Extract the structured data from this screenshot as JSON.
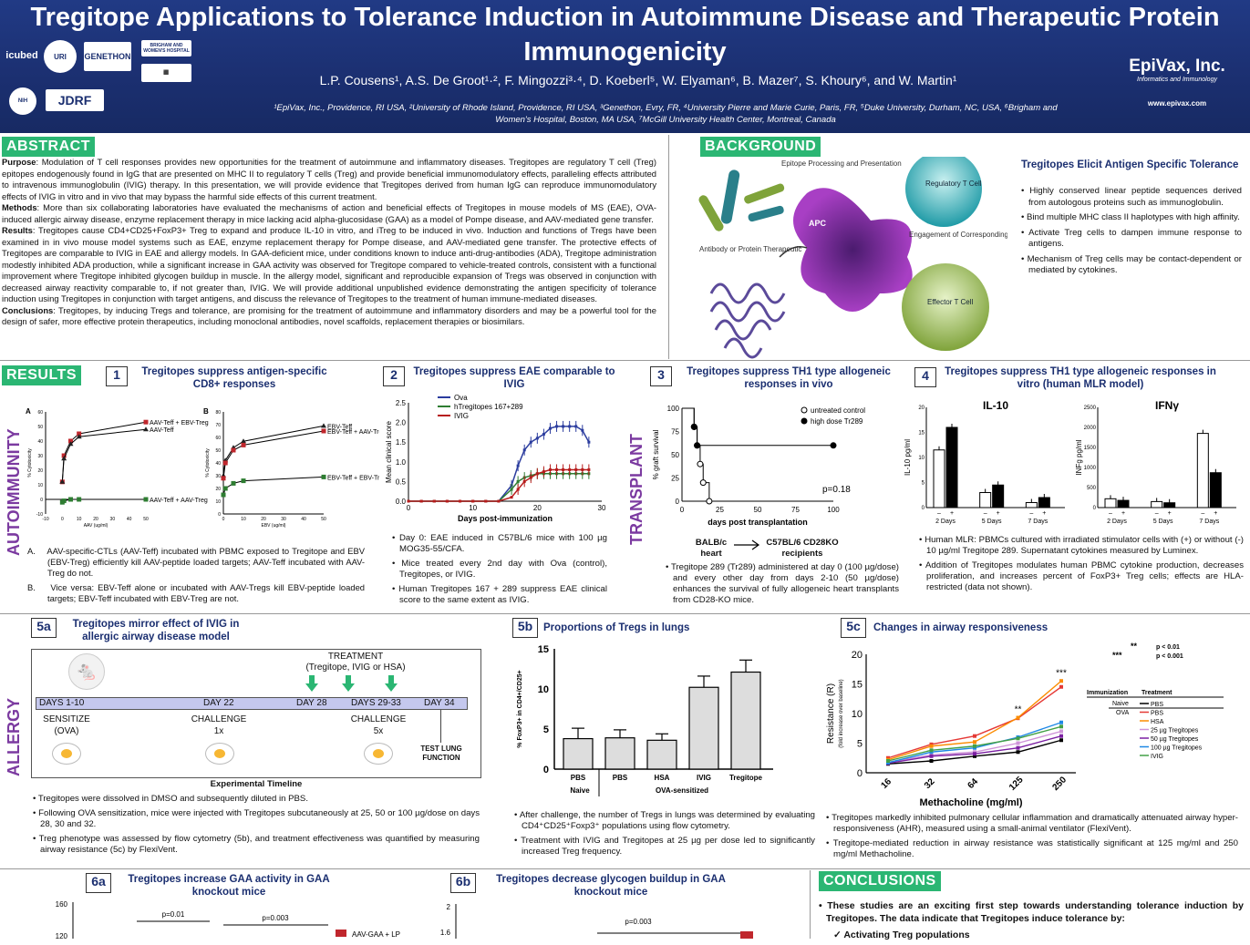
{
  "header": {
    "title": "Tregitope Applications to Tolerance Induction in Autoimmune Disease and Therapeutic Protein Immunogenicity",
    "authors": "L.P. Cousens¹, A.S. De Groot¹·², F. Mingozzi³·⁴, D. Koeberl⁵, W. Elyaman⁶, B. Mazer⁷, S. Khoury⁶, and W. Martin¹",
    "affiliations": "¹EpiVax, Inc., Providence, RI USA, ²University of Rhode Island, Providence, RI USA, ³Genethon, Evry, FR, ⁴University Pierre and Marie Curie, Paris, FR, ⁵Duke University, Durham, NC, USA, ⁶Brigham and Women's Hospital, Boston, MA USA, ⁷McGill University Health Center, Montreal, Canada",
    "logos": {
      "icubed": "icubed",
      "genethon": "GENETHON",
      "jdrf": "JDRF",
      "brigham": "BRIGHAM AND WOMEN'S HOSPITAL"
    },
    "epivax_name": "EpiVax, Inc.",
    "epivax_tagline": "Informatics and Immunology",
    "epivax_url": "www.epivax.com"
  },
  "abstract": {
    "heading": "ABSTRACT",
    "purpose_label": "Purpose",
    "purpose": ": Modulation of T cell responses provides new opportunities for the treatment of autoimmune and inflammatory diseases. Tregitopes are regulatory T cell (Treg) epitopes endogenously found in IgG that are presented on MHC II to regulatory T cells (Treg) and provide beneficial immunomodulatory effects, paralleling effects attributed to intravenous immunoglobulin (IVIG) therapy. In this presentation, we will provide evidence that Tregitopes derived from human IgG can reproduce immunomodulatory effects of IVIG in vitro and in vivo that may bypass the harmful side effects of this current treatment.",
    "methods_label": "Methods",
    "methods": ": More than six collaborating laboratories have evaluated the mechanisms of action and beneficial effects of Tregitopes in mouse models of MS (EAE), OVA-induced allergic airway disease, enzyme replacement therapy in mice lacking acid alpha-glucosidase (GAA) as a model of Pompe disease, and AAV-mediated gene transfer.",
    "results_label": "Results",
    "results": ": Tregitopes cause CD4+CD25+FoxP3+ Treg to expand and produce IL-10 in vitro, and iTreg to be induced in vivo. Induction and functions of Tregs have been examined in in vivo mouse model systems such as EAE, enzyme replacement therapy for Pompe disease, and AAV-mediated gene transfer. The protective effects of Tregitopes are comparable to IVIG in EAE and allergy models. In GAA-deficient mice, under conditions known to induce anti-drug-antibodies (ADA), Tregitope administration modestly inhibited ADA production, while a significant increase in GAA activity was observed for Tregitope compared to vehicle-treated controls, consistent with a functional improvement where Tregitope inhibited glycogen buildup in muscle. In the allergy model, significant and reproducible expansion of Tregs was observed in conjunction with decreased airway reactivity comparable to, if not greater than, IVIG. We will provide additional unpublished evidence demonstrating the antigen specificity of tolerance induction using Tregitopes in conjunction with target antigens, and discuss the relevance of Tregitopes to the treatment of human immune-mediated diseases.",
    "conclusions_label": "Conclusions",
    "conclusions": ": Tregitopes, by inducing Tregs and tolerance, are promising for the treatment of autoimmune and inflammatory disorders and may be a powerful tool for the design of safer, more effective protein therapeutics, including monoclonal antibodies, novel scaffolds, replacement therapies or biosimilars."
  },
  "background": {
    "heading": "BACKGROUND",
    "subtitle": "Tregitopes Elicit Antigen Specific Tolerance",
    "labels": {
      "epitope": "Epitope Processing and Presentation",
      "apc": "APC",
      "antibody": "Antibody or Protein Therapeutic",
      "treg": "Regulatory T Cell",
      "engage": "Engagement of Corresponding T Cells",
      "effector": "Effector T Cell"
    },
    "bullets": [
      "Highly conserved linear peptide sequences derived from autologous proteins such as immunoglobulin.",
      "Bind multiple MHC class II haplotypes with high affinity.",
      "Activate Treg cells to dampen immune response to antigens.",
      "Mechanism of Treg cells may be contact-dependent or mediated by cytokines."
    ]
  },
  "results": {
    "heading": "RESULTS",
    "side_autoimmunity": "AUTOIMMUNITY",
    "side_transplant": "TRANSPLANT",
    "side_allergy": "ALLERGY",
    "p1": {
      "num": "1",
      "title": "Tregitopes suppress antigen-specific CD8+ responses",
      "panelA": "A",
      "panelB": "B",
      "ylabel": "% Cytotoxicity",
      "xlabelA": "AAV (ug/ml)",
      "xlabelB": "EBV (ug/ml)",
      "bullets": [
        "AAV-specific-CTLs (AAV-Teff) incubated with PBMC exposed to Tregitope and EBV (EBV-Treg) efficiently kill AAV-peptide loaded targets; AAV-Teff incubated with AAV-Treg do not.",
        "Vice versa: EBV-Teff alone or incubated with AAV-Tregs kill EBV-peptide loaded targets; EBV-Teff incubated with EBV-Treg are not."
      ],
      "bullet_letters": [
        "A.",
        "B."
      ]
    },
    "p2": {
      "num": "2",
      "title": "Tregitopes suppress EAE comparable to IVIG",
      "ylabel": "Mean clinical score",
      "xlabel": "Days post-immunization",
      "bullets": [
        "Day 0: EAE induced in C57BL/6 mice with 100 µg MOG35-55/CFA.",
        "Mice treated every 2nd day with Ova (control), Tregitopes, or IVIG.",
        "Human Tregitopes 167 + 289 suppress EAE clinical score to the same extent as IVIG."
      ]
    },
    "p3": {
      "num": "3",
      "title": "Tregitopes suppress TH1 type allogeneic responses in vivo",
      "ylabel": "% graft survival",
      "xlabel": "days post transplantation",
      "pval": "p=0.18",
      "donor": "BALB/c heart",
      "recipient": "C57BL/6 CD28KO recipients",
      "bullets": [
        "Tregitope 289 (Tr289) administered at day 0 (100 µg/dose) and every other day from days 2-10 (50 µg/dose) enhances the survival of fully allogeneic heart transplants from CD28-KO mice."
      ]
    },
    "p4": {
      "num": "4",
      "title": "Tregitopes suppress TH1 type allogeneic responses in vitro (human MLR model)",
      "il10_title": "IL-10",
      "ifng_title": "IFNγ",
      "il10_ylabel": "IL-10 pg/ml",
      "ifng_ylabel": "INFg pg/ml",
      "bullets": [
        "Human MLR: PBMCs cultured with irradiated stimulator cells with (+) or without (-) 10 µg/ml Tregitope 289. Supernatant cytokines measured by Luminex.",
        "Addition of Tregitopes modulates human PBMC cytokine production, decreases proliferation, and increases percent of FoxP3+ Treg cells; effects are HLA-restricted (data not shown)."
      ]
    },
    "p5a": {
      "num": "5a",
      "title": "Tregitopes mirror effect of IVIG in allergic airway disease model",
      "treatment": "TREATMENT",
      "treatment_sub": "(Tregitope, IVIG or HSA)",
      "days": [
        "DAYS 1-10",
        "DAY 22",
        "DAY 28",
        "DAYS 29-33",
        "DAY 34"
      ],
      "sens": "SENSITIZE",
      "sens_sub": "(OVA)",
      "chal1": "CHALLENGE",
      "chal1_sub": "1x",
      "chal2": "CHALLENGE",
      "chal2_sub": "5x",
      "test": "TEST LUNG FUNCTION",
      "timeline_label": "Experimental Timeline",
      "bullets": [
        "Tregitopes were dissolved in DMSO and subsequently diluted in PBS.",
        "Following OVA sensitization, mice were injected with Tregitopes subcutaneously at 25, 50 or 100 µg/dose on days 28, 30 and 32.",
        "Treg phenotype was assessed by flow cytometry (5b), and treatment effectiveness was quantified by measuring airway resistance (5c) by FlexiVent."
      ]
    },
    "p5b": {
      "num": "5b",
      "title": "Proportions of Tregs in lungs",
      "ylabel": "% FoxP3+ in CD4+/CD25+",
      "naive": "Naive",
      "ova": "OVA-sensitized",
      "bullets": [
        "After challenge, the number of Tregs in lungs was determined by evaluating CD4⁺CD25⁺Foxp3⁺ populations using flow cytometry.",
        "Treatment with IVIG and Tregitopes at 25 µg per dose led to significantly increased Treg frequency."
      ]
    },
    "p5c": {
      "num": "5c",
      "title": "Changes in airway responsiveness",
      "ylabel": "Resistance (R)",
      "ylabel2": "(fold increase over baseline)",
      "xlabel": "Methacholine (mg/ml)",
      "sig": [
        "**",
        "***"
      ],
      "sigvals": [
        "p < 0.01",
        "p < 0.001"
      ],
      "legend_immunization": "Immunization",
      "legend_treatment": "Treatment",
      "legend_naive": "Naive",
      "legend_ova": "OVA",
      "bullets": [
        "Tregitopes markedly inhibited pulmonary cellular inflammation and dramatically attenuated airway hyper-responsiveness (AHR), measured using a small-animal ventilator (FlexiVent).",
        "Tregitope-mediated reduction in airway resistance was statistically significant at 125 mg/ml and 250 mg/ml Methacholine."
      ]
    },
    "p6a": {
      "num": "6a",
      "title": "Tregitopes increase GAA activity in GAA knockout mice",
      "p1": "p=0.01",
      "p2": "p=0.003",
      "legend": "AAV-GAA + LP",
      "yticks": [
        "160",
        "120"
      ]
    },
    "p6b": {
      "num": "6b",
      "title": "Tregitopes decrease glycogen buildup in GAA knockout mice",
      "p": "p=0.003",
      "yticks": [
        "2",
        "1.6"
      ]
    }
  },
  "conclusions": {
    "heading": "CONCLUSIONS",
    "text": "These studies are an exciting first step towards understanding tolerance induction by Tregitopes. The data indicate that Tregitopes induce tolerance by:",
    "sub": "Activating Treg populations"
  },
  "chart_data": [
    {
      "type": "line",
      "id": "fig1A",
      "x": [
        0,
        1,
        5,
        10,
        50
      ],
      "ylim": [
        -10,
        60
      ],
      "xticks": [
        "-10",
        "0",
        "10",
        "20",
        "30",
        "40",
        "50"
      ],
      "yticks": [
        "60",
        "50",
        "40",
        "30",
        "20",
        "10",
        "0",
        "-10"
      ],
      "series": [
        {
          "name": "AAV-Teff + EBV-Treg",
          "values": [
            12,
            30,
            40,
            45,
            53
          ],
          "color": "#c0272d",
          "marker": "square"
        },
        {
          "name": "AAV-Teff",
          "values": [
            12,
            28,
            38,
            43,
            48
          ],
          "color": "#222",
          "marker": "triangle"
        },
        {
          "name": "AAV-Teff + AAV-Treg",
          "values": [
            -2,
            -1,
            0,
            0,
            0
          ],
          "color": "#2e7d32",
          "marker": "square"
        }
      ]
    },
    {
      "type": "line",
      "id": "fig1B",
      "x": [
        0,
        1,
        5,
        10,
        50
      ],
      "ylim": [
        0,
        80
      ],
      "xticks": [
        "0",
        "10",
        "20",
        "30",
        "40",
        "50"
      ],
      "yticks": [
        "80",
        "70",
        "60",
        "50",
        "40",
        "30",
        "20",
        "10",
        "0"
      ],
      "series": [
        {
          "name": "EBV-Teff",
          "values": [
            30,
            42,
            52,
            57,
            69
          ],
          "color": "#222",
          "marker": "triangle"
        },
        {
          "name": "EBV-Teff + AAV-Treg",
          "values": [
            28,
            40,
            50,
            54,
            65
          ],
          "color": "#c0272d",
          "marker": "square"
        },
        {
          "name": "EBV-Teff + EBV-Treg",
          "values": [
            15,
            20,
            24,
            26,
            29
          ],
          "color": "#2e7d32",
          "marker": "square"
        }
      ]
    },
    {
      "type": "line",
      "id": "fig2",
      "x": [
        0,
        2,
        4,
        6,
        8,
        10,
        12,
        14,
        16,
        17,
        18,
        19,
        20,
        21,
        22,
        23,
        24,
        25,
        26,
        27,
        28
      ],
      "ylim": [
        0,
        2.5
      ],
      "xticks": [
        "0",
        "10",
        "20",
        "30"
      ],
      "yticks": [
        "0.0",
        "0.5",
        "1.0",
        "1.5",
        "2.0",
        "2.5"
      ],
      "series": [
        {
          "name": "Ova",
          "values": [
            0,
            0,
            0,
            0,
            0,
            0,
            0,
            0,
            0.4,
            0.9,
            1.3,
            1.5,
            1.6,
            1.7,
            1.85,
            1.9,
            1.9,
            1.9,
            1.9,
            1.8,
            1.5
          ],
          "color": "#2b3c9e"
        },
        {
          "name": "hTregitopes 167+289",
          "values": [
            0,
            0,
            0,
            0,
            0,
            0,
            0,
            0,
            0.3,
            0.5,
            0.6,
            0.65,
            0.7,
            0.7,
            0.7,
            0.7,
            0.7,
            0.7,
            0.7,
            0.7,
            0.7
          ],
          "color": "#2e7d32"
        },
        {
          "name": "IVIG",
          "values": [
            0,
            0,
            0,
            0,
            0,
            0,
            0,
            0,
            0.1,
            0.3,
            0.5,
            0.6,
            0.7,
            0.75,
            0.8,
            0.8,
            0.8,
            0.8,
            0.8,
            0.8,
            0.8
          ],
          "color": "#b71c1c"
        }
      ]
    },
    {
      "type": "line",
      "id": "fig3",
      "xlim": [
        0,
        100
      ],
      "ylim": [
        0,
        100
      ],
      "xticks": [
        "0",
        "25",
        "50",
        "75",
        "100"
      ],
      "yticks": [
        "0",
        "25",
        "50",
        "75",
        "100"
      ],
      "series": [
        {
          "name": "untreated control",
          "points": [
            [
              0,
              100
            ],
            [
              8,
              80
            ],
            [
              10,
              60
            ],
            [
              12,
              40
            ],
            [
              14,
              20
            ],
            [
              18,
              0
            ]
          ],
          "marker": "open"
        },
        {
          "name": "high dose Tr289",
          "points": [
            [
              0,
              100
            ],
            [
              8,
              80
            ],
            [
              10,
              60
            ],
            [
              100,
              60
            ]
          ],
          "marker": "filled"
        }
      ]
    },
    {
      "type": "bar",
      "id": "fig4_il10",
      "categories": [
        "2 Days",
        "5 Days",
        "7 Days"
      ],
      "groups": [
        "–",
        "+"
      ],
      "ylim": [
        0,
        20
      ],
      "yticks": [
        "0",
        "5",
        "10",
        "15",
        "20"
      ],
      "series": [
        {
          "name": "–",
          "values": [
            11.5,
            3,
            1
          ],
          "color": "#fff"
        },
        {
          "name": "+",
          "values": [
            16,
            4.5,
            2
          ],
          "color": "#000"
        }
      ]
    },
    {
      "type": "bar",
      "id": "fig4_ifng",
      "categories": [
        "2 Days",
        "5 Days",
        "7 Days"
      ],
      "groups": [
        "–",
        "+"
      ],
      "ylim": [
        0,
        2500
      ],
      "yticks": [
        "0",
        "500",
        "1000",
        "1500",
        "2000",
        "2500"
      ],
      "series": [
        {
          "name": "–",
          "values": [
            220,
            150,
            1850
          ],
          "color": "#fff"
        },
        {
          "name": "+",
          "values": [
            180,
            120,
            870
          ],
          "color": "#000"
        }
      ]
    },
    {
      "type": "bar",
      "id": "fig5b",
      "categories": [
        "PBS",
        "PBS",
        "HSA",
        "IVIG",
        "Tregitope"
      ],
      "values": [
        3.8,
        3.9,
        3.6,
        10.2,
        12.1
      ],
      "errors": [
        1.3,
        1.0,
        0.8,
        1.4,
        1.5
      ],
      "ylim": [
        0,
        15
      ],
      "yticks": [
        "0",
        "5",
        "10",
        "15"
      ]
    },
    {
      "type": "line",
      "id": "fig5c",
      "categories": [
        "16",
        "32",
        "64",
        "125",
        "250"
      ],
      "ylim": [
        0,
        20
      ],
      "yticks": [
        "0",
        "5",
        "10",
        "15",
        "20"
      ],
      "series": [
        {
          "name": "PBS",
          "group": "Naive",
          "values": [
            1.5,
            2,
            2.8,
            3.5,
            5.5
          ],
          "color": "#000"
        },
        {
          "name": "PBS",
          "group": "OVA",
          "values": [
            2.5,
            4.8,
            6.2,
            9.2,
            14.5
          ],
          "color": "#e53935"
        },
        {
          "name": "HSA",
          "group": "OVA",
          "values": [
            2.2,
            4.5,
            5.2,
            9.3,
            15.5
          ],
          "color": "#fb8c00"
        },
        {
          "name": "25 µg Tregitopes",
          "group": "OVA",
          "values": [
            1.8,
            3,
            3.5,
            5,
            7
          ],
          "color": "#ce93d8"
        },
        {
          "name": "50 µg Tregitopes",
          "group": "OVA",
          "values": [
            1.6,
            2.8,
            3.2,
            4.2,
            6.2
          ],
          "color": "#7b1fa2"
        },
        {
          "name": "100 µg Tregitopes",
          "group": "OVA",
          "values": [
            1.7,
            3.5,
            4.2,
            6,
            8.5
          ],
          "color": "#1e88e5"
        },
        {
          "name": "IVIG",
          "group": "OVA",
          "values": [
            2,
            3.8,
            4.5,
            5.8,
            7.8
          ],
          "color": "#43a047"
        }
      ]
    }
  ]
}
